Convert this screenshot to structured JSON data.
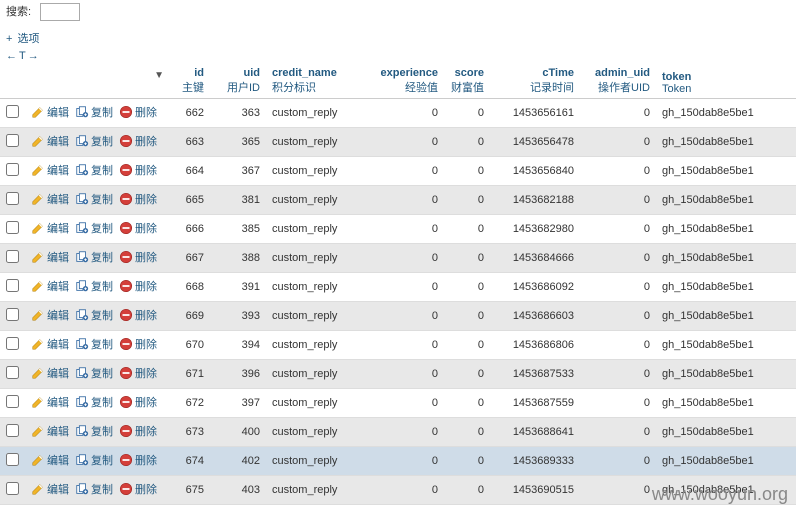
{
  "top": {
    "search_label": "搜索:",
    "search_value": ""
  },
  "options": {
    "label": "选项",
    "arrows": {
      "left": "←",
      "t": "T",
      "right": "→"
    }
  },
  "columns": [
    {
      "key": "id",
      "head": "id",
      "sub": "主键",
      "align": "right",
      "width": 40
    },
    {
      "key": "uid",
      "head": "uid",
      "sub": "用户ID",
      "align": "right",
      "width": 56
    },
    {
      "key": "credit_name",
      "head": "credit_name",
      "sub": "积分标识",
      "align": "left",
      "width": 100
    },
    {
      "key": "experience",
      "head": "experience",
      "sub": "经验值",
      "align": "right",
      "width": 78
    },
    {
      "key": "score",
      "head": "score",
      "sub": "财富值",
      "align": "right",
      "width": 46
    },
    {
      "key": "cTime",
      "head": "cTime",
      "sub": "记录时间",
      "align": "right",
      "width": 90
    },
    {
      "key": "admin_uid",
      "head": "admin_uid",
      "sub": "操作者UID",
      "align": "right",
      "width": 76
    },
    {
      "key": "token",
      "head": "token",
      "sub": "Token",
      "align": "left",
      "width": 140
    }
  ],
  "actions": {
    "edit": "编辑",
    "copy": "复制",
    "delete": "删除"
  },
  "rows": [
    {
      "id": 662,
      "uid": 363,
      "credit_name": "custom_reply",
      "experience": 0,
      "score": 0,
      "cTime": 1453656161,
      "admin_uid": 0,
      "token": "gh_150dab8e5be1"
    },
    {
      "id": 663,
      "uid": 365,
      "credit_name": "custom_reply",
      "experience": 0,
      "score": 0,
      "cTime": 1453656478,
      "admin_uid": 0,
      "token": "gh_150dab8e5be1"
    },
    {
      "id": 664,
      "uid": 367,
      "credit_name": "custom_reply",
      "experience": 0,
      "score": 0,
      "cTime": 1453656840,
      "admin_uid": 0,
      "token": "gh_150dab8e5be1"
    },
    {
      "id": 665,
      "uid": 381,
      "credit_name": "custom_reply",
      "experience": 0,
      "score": 0,
      "cTime": 1453682188,
      "admin_uid": 0,
      "token": "gh_150dab8e5be1"
    },
    {
      "id": 666,
      "uid": 385,
      "credit_name": "custom_reply",
      "experience": 0,
      "score": 0,
      "cTime": 1453682980,
      "admin_uid": 0,
      "token": "gh_150dab8e5be1"
    },
    {
      "id": 667,
      "uid": 388,
      "credit_name": "custom_reply",
      "experience": 0,
      "score": 0,
      "cTime": 1453684666,
      "admin_uid": 0,
      "token": "gh_150dab8e5be1"
    },
    {
      "id": 668,
      "uid": 391,
      "credit_name": "custom_reply",
      "experience": 0,
      "score": 0,
      "cTime": 1453686092,
      "admin_uid": 0,
      "token": "gh_150dab8e5be1"
    },
    {
      "id": 669,
      "uid": 393,
      "credit_name": "custom_reply",
      "experience": 0,
      "score": 0,
      "cTime": 1453686603,
      "admin_uid": 0,
      "token": "gh_150dab8e5be1"
    },
    {
      "id": 670,
      "uid": 394,
      "credit_name": "custom_reply",
      "experience": 0,
      "score": 0,
      "cTime": 1453686806,
      "admin_uid": 0,
      "token": "gh_150dab8e5be1"
    },
    {
      "id": 671,
      "uid": 396,
      "credit_name": "custom_reply",
      "experience": 0,
      "score": 0,
      "cTime": 1453687533,
      "admin_uid": 0,
      "token": "gh_150dab8e5be1"
    },
    {
      "id": 672,
      "uid": 397,
      "credit_name": "custom_reply",
      "experience": 0,
      "score": 0,
      "cTime": 1453687559,
      "admin_uid": 0,
      "token": "gh_150dab8e5be1"
    },
    {
      "id": 673,
      "uid": 400,
      "credit_name": "custom_reply",
      "experience": 0,
      "score": 0,
      "cTime": 1453688641,
      "admin_uid": 0,
      "token": "gh_150dab8e5be1"
    },
    {
      "id": 674,
      "uid": 402,
      "credit_name": "custom_reply",
      "experience": 0,
      "score": 0,
      "cTime": 1453689333,
      "admin_uid": 0,
      "token": "gh_150dab8e5be1",
      "highlight": true
    },
    {
      "id": 675,
      "uid": 403,
      "credit_name": "custom_reply",
      "experience": 0,
      "score": 0,
      "cTime": 1453690515,
      "admin_uid": 0,
      "token": "gh_150dab8e5be1"
    }
  ],
  "watermark": "www.wooyun.org",
  "icons": {
    "edit_color": "#f0b429",
    "copy_color": "#3a6ea5",
    "delete_color": "#d43f3a"
  }
}
